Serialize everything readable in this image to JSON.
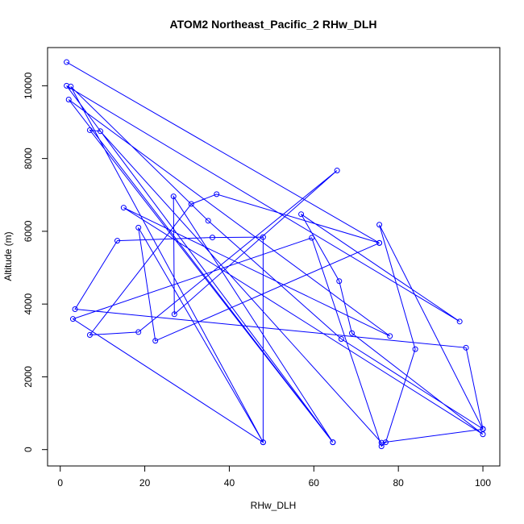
{
  "chart_data": {
    "type": "line",
    "title": "ATOM2 Northeast_Pacific_2 RHw_DLH",
    "xlabel": "RHw_DLH",
    "ylabel": "Altitude (m)",
    "xlim": [
      -3,
      104
    ],
    "ylim": [
      -450,
      11050
    ],
    "x_ticks": [
      0,
      20,
      40,
      60,
      80,
      100
    ],
    "y_ticks": [
      0,
      2000,
      4000,
      6000,
      8000,
      10000
    ],
    "grid": false,
    "marker": "open-circle",
    "color": "#0000ff",
    "series": [
      {
        "points": [
          [
            1.5,
            10650
          ],
          [
            75.5,
            5680
          ],
          [
            37,
            7020
          ],
          [
            31,
            6750
          ],
          [
            7,
            3150
          ],
          [
            18.5,
            3230
          ],
          [
            65.5,
            7670
          ],
          [
            27,
            3720
          ],
          [
            26.8,
            6960
          ],
          [
            64.5,
            200
          ],
          [
            1.5,
            10000
          ],
          [
            94.5,
            3520
          ],
          [
            57,
            6470
          ],
          [
            66,
            4630
          ],
          [
            69,
            3200
          ],
          [
            100,
            420
          ],
          [
            15,
            6650
          ],
          [
            78,
            3120
          ],
          [
            2,
            9620
          ],
          [
            64.5,
            200
          ],
          [
            7,
            8780
          ],
          [
            9.5,
            8750
          ],
          [
            76,
            190
          ],
          [
            100,
            560
          ],
          [
            75.5,
            6180
          ],
          [
            84,
            2760
          ],
          [
            77,
            200
          ],
          [
            76,
            90
          ],
          [
            59.5,
            5820
          ],
          [
            3,
            3590
          ],
          [
            48,
            200
          ],
          [
            2.5,
            9980
          ],
          [
            35,
            6290
          ],
          [
            66.5,
            3040
          ],
          [
            100,
            570
          ],
          [
            96,
            2800
          ],
          [
            3.5,
            3860
          ],
          [
            13.5,
            5740
          ],
          [
            36,
            5830
          ],
          [
            48,
            5840
          ],
          [
            48,
            200
          ],
          [
            18.5,
            6100
          ],
          [
            22.5,
            2990
          ],
          [
            75.5,
            5680
          ]
        ]
      }
    ]
  }
}
